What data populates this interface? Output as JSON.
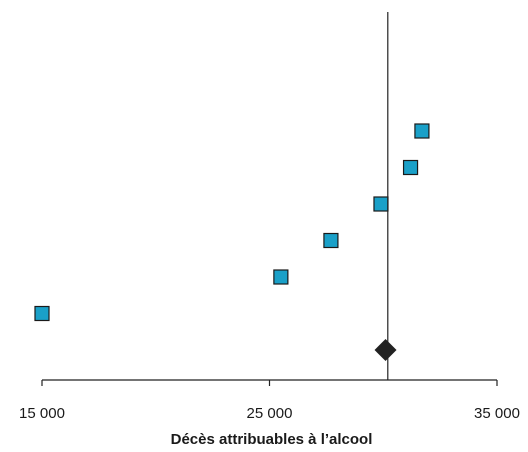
{
  "chart_data": {
    "type": "scatter",
    "title": "",
    "xlabel": "Décès attribuables à l’alcool",
    "ylabel": "",
    "xlim": [
      15000,
      35000
    ],
    "xticks": [
      15000,
      25000,
      35000
    ],
    "xtick_labels": [
      "15 000",
      "25 000",
      "35 000"
    ],
    "reference_line_x": 30200,
    "series": [
      {
        "marker": "square",
        "color": "#1aa0c8",
        "x": [
          15000,
          25500,
          27700,
          29900,
          31200,
          31700
        ]
      },
      {
        "marker": "diamond",
        "color": "#222222",
        "x": [
          30100
        ]
      }
    ],
    "grid": false,
    "legend": "none"
  }
}
